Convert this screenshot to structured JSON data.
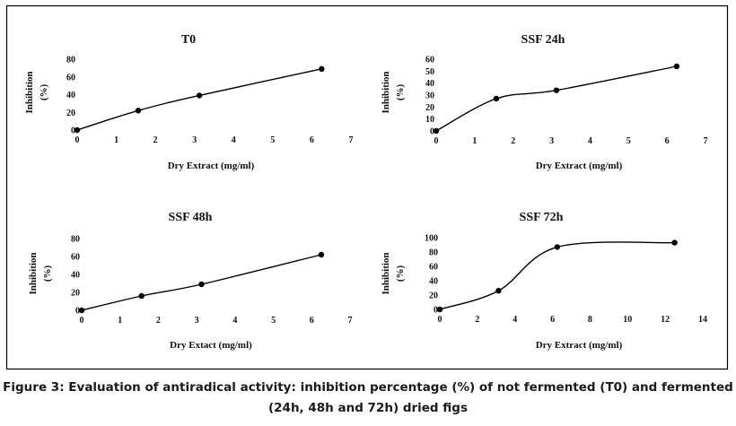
{
  "caption": {
    "line1": "Figure 3: Evaluation of antiradical activity: inhibition percentage (%) of not fermented (T0) and fermented",
    "line2": "(24h, 48h and 72h) dried figs"
  },
  "chart_data": [
    {
      "type": "line",
      "title": "T0",
      "xlabel": "Dry Extract (mg/ml)",
      "ylabel": [
        "Inhibition",
        "(%)"
      ],
      "xlim": [
        0,
        7
      ],
      "ylim": [
        0,
        80
      ],
      "xticks": [
        0,
        1,
        2,
        3,
        4,
        5,
        6,
        7
      ],
      "yticks": [
        0,
        20,
        40,
        60,
        80
      ],
      "x": [
        0,
        1.5625,
        3.125,
        6.25
      ],
      "y": [
        0,
        22,
        39,
        69
      ],
      "smooth": true,
      "grid": false,
      "color": "#000000"
    },
    {
      "type": "line",
      "title": "SSF 24h",
      "xlabel": "Dry Extract (mg/ml)",
      "ylabel": [
        "Inhibition",
        "(%)"
      ],
      "xlim": [
        0,
        7
      ],
      "ylim": [
        0,
        60
      ],
      "xticks": [
        0,
        1,
        2,
        3,
        4,
        5,
        6,
        7
      ],
      "yticks": [
        0,
        10,
        20,
        30,
        40,
        50,
        60
      ],
      "x": [
        0,
        1.5625,
        3.125,
        6.25
      ],
      "y": [
        0,
        27,
        34,
        54
      ],
      "smooth": true,
      "grid": false,
      "color": "#000000"
    },
    {
      "type": "line",
      "title": "SSF 48h",
      "xlabel": "Dry Extact (mg/ml)",
      "ylabel": [
        "Inhibition",
        "(%)"
      ],
      "xlim": [
        0,
        7
      ],
      "ylim": [
        0,
        80
      ],
      "xticks": [
        0,
        1,
        2,
        3,
        4,
        5,
        6,
        7
      ],
      "yticks": [
        0,
        20,
        40,
        60,
        80
      ],
      "x": [
        0,
        1.5625,
        3.125,
        6.25
      ],
      "y": [
        0,
        16,
        29,
        62
      ],
      "smooth": true,
      "grid": false,
      "color": "#000000"
    },
    {
      "type": "line",
      "title": "SSF 72h",
      "xlabel": "Dry Extract (mg/ml)",
      "ylabel": [
        "Inhibition",
        "(%)"
      ],
      "xlim": [
        0,
        14
      ],
      "ylim": [
        0,
        100
      ],
      "xticks": [
        0,
        2,
        4,
        6,
        8,
        10,
        12,
        14
      ],
      "yticks": [
        0,
        20,
        40,
        60,
        80,
        100
      ],
      "x": [
        0,
        3.125,
        6.25,
        12.5
      ],
      "y": [
        0,
        26,
        87,
        93
      ],
      "smooth": true,
      "grid": false,
      "color": "#000000"
    }
  ]
}
